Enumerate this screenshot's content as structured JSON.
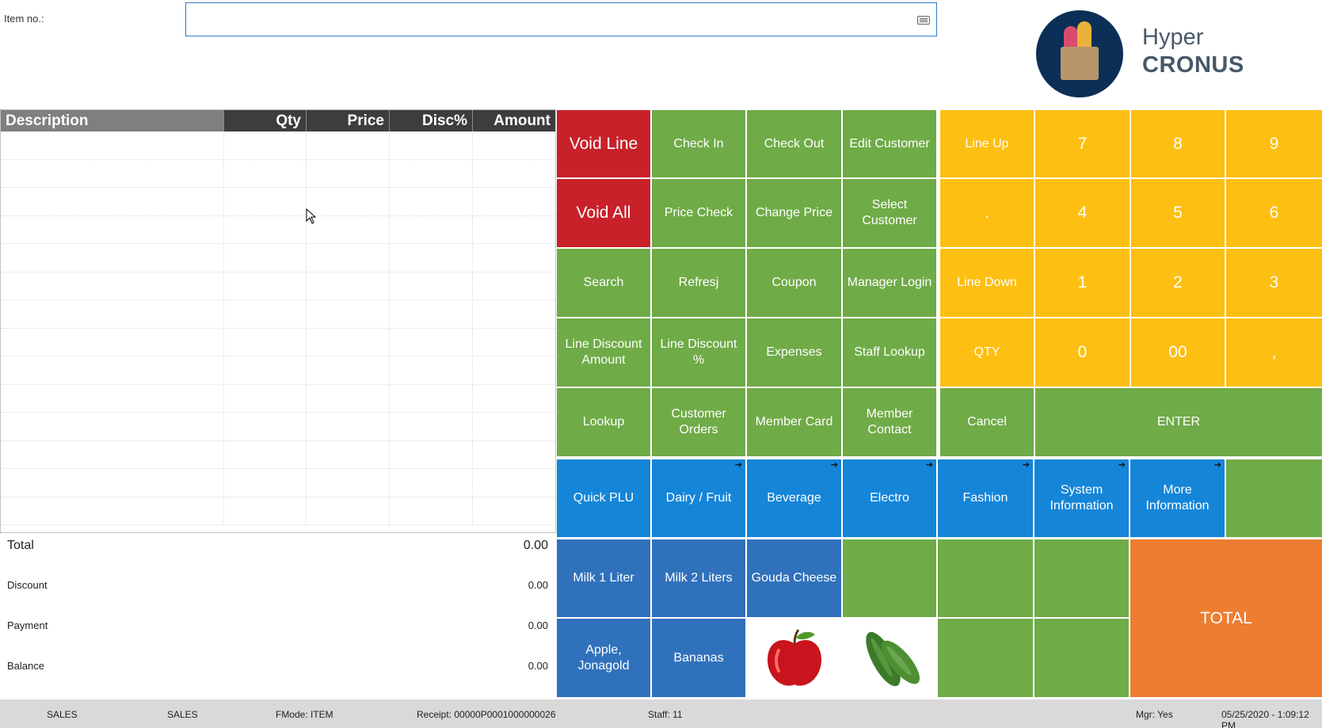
{
  "item_bar": {
    "label": "Item no.:",
    "value": "",
    "placeholder": ""
  },
  "logo": {
    "line1": "Hyper",
    "line2": "CRONUS"
  },
  "grid": {
    "columns": {
      "description": "Description",
      "qty": "Qty",
      "price": "Price",
      "disc": "Disc%",
      "amount": "Amount"
    }
  },
  "totals": {
    "total_label": "Total",
    "total_value": "0.00",
    "discount_label": "Discount",
    "discount_value": "0.00",
    "payment_label": "Payment",
    "payment_value": "0.00",
    "balance_label": "Balance",
    "balance_value": "0.00"
  },
  "buttons": {
    "void_line": "Void Line",
    "check_in": "Check In",
    "check_out": "Check Out",
    "edit_customer": "Edit Customer",
    "void_all": "Void All",
    "price_check": "Price Check",
    "change_price": "Change Price",
    "select_customer": "Select Customer",
    "search": "Search",
    "refresh": "Refresj",
    "coupon": "Coupon",
    "manager_login": "Manager Login",
    "line_discount_amount": "Line Discount Amount",
    "line_discount_pct": "Line Discount %",
    "expenses": "Expenses",
    "staff_lookup": "Staff Lookup",
    "lookup": "Lookup",
    "customer_orders": "Customer Orders",
    "member_card": "Member Card",
    "member_contact": "Member Contact",
    "line_up": "Line Up",
    "line_down": "Line Down",
    "qty": "QTY",
    "cancel": "Cancel",
    "enter": "ENTER",
    "k7": "7",
    "k8": "8",
    "k9": "9",
    "kdot": ".",
    "k4": "4",
    "k5": "5",
    "k6": "6",
    "k1": "1",
    "k2": "2",
    "k3": "3",
    "k0": "0",
    "k00": "00",
    "kcomma": ",",
    "quick_plu": "Quick PLU",
    "dairy_fruit": "Dairy / Fruit",
    "beverage": "Beverage",
    "electro": "Electro",
    "fashion": "Fashion",
    "system_information": "System Information",
    "more_information": "More Information",
    "milk_1_liter": "Milk 1 Liter",
    "milk_2_liters": "Milk 2 Liters",
    "gouda_cheese": "Gouda Cheese",
    "apple_jonagold": "Apple, Jonagold",
    "bananas": "Bananas",
    "total": "TOTAL"
  },
  "status_bar": {
    "s1": "SALES",
    "s2": "SALES",
    "fmode": "FMode: ITEM",
    "receipt": "Receipt: 00000P0001000000026",
    "staff": "Staff: 11",
    "mgr": "Mgr: Yes",
    "datetime": "05/25/2020 - 1:09:12 PM"
  },
  "colors": {
    "green": "#6fab47",
    "red": "#c8212a",
    "yellow": "#fdbf11",
    "blue": "#1585d8",
    "dark_blue": "#3071bc",
    "orange": "#ed7d31",
    "header_dark": "#3d3d3d",
    "logo_navy": "#0c2f57"
  }
}
